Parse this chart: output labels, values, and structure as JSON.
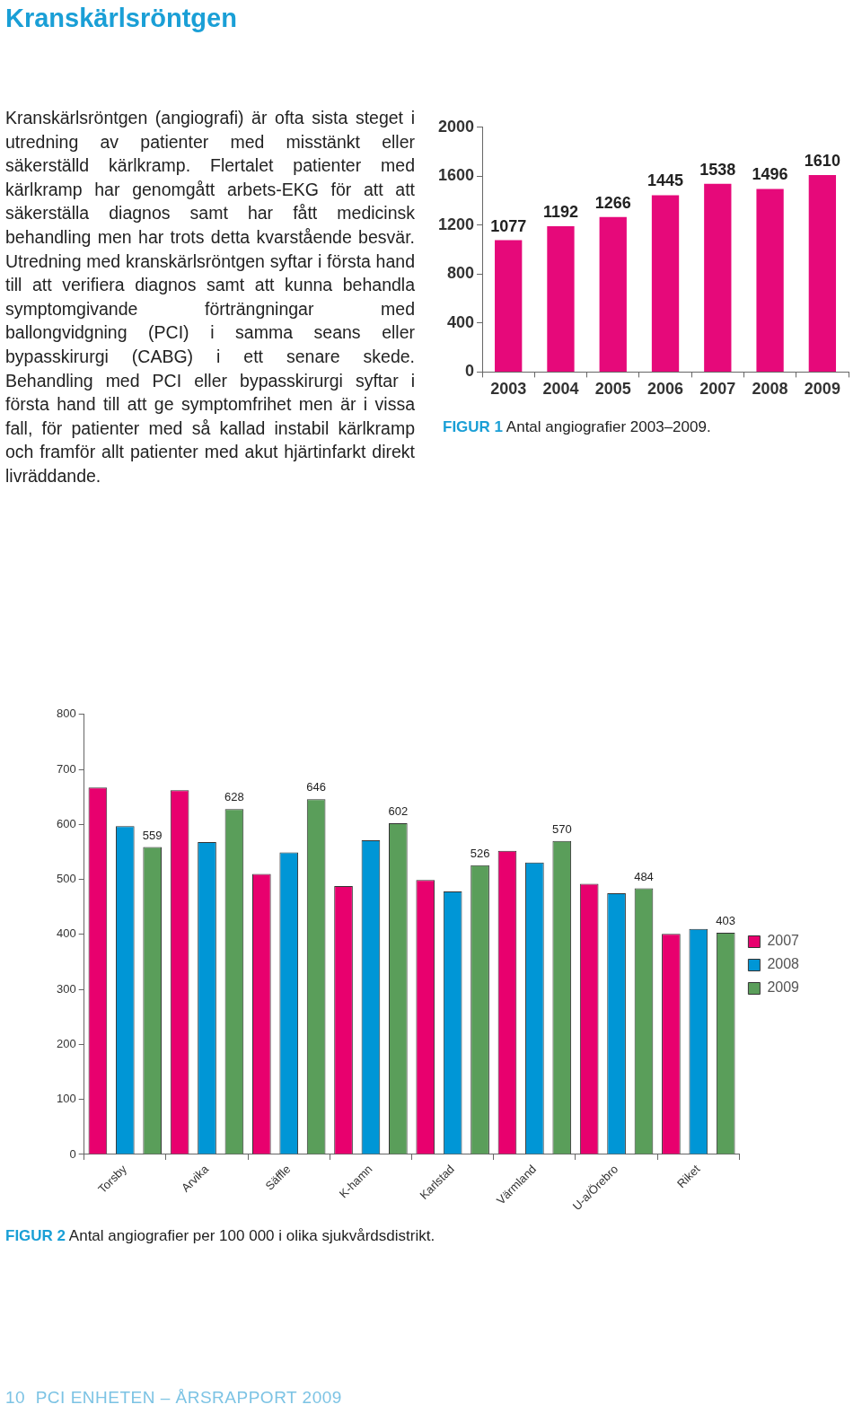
{
  "chart_data": [
    {
      "type": "bar",
      "title": "FIGUR 1",
      "subtitle": "Antal angiografier 2003–2009.",
      "annotations": [
        "Kranskärlsröntgen",
        "Kranskärlsröntgen (angiografi) är ofta sista steget i utredning av patienter med misstänkt eller säkerställd kärlkramp. Flertalet patienter med kärlkramp har genomgått arbets-EKG för att att säkerställa diagnos samt har fått medicinsk behandling men har trots detta kvarstående besvär. Utredning med kranskärlsröntgen syftar i första hand till att verifiera diagnos samt att kunna behandla symptomgivande förträngningar med ballongvidgning (PCI) i samma seans eller bypasskirurgi (CABG) i ett senare skede. Behandling med PCI eller bypasskirurgi syftar i första hand till att ge symptomfrihet men är i vissa fall, för patienter med så kallad instabil kärlkramp och framför allt patienter med akut hjärtinfarkt direkt livräddande."
      ],
      "categories": [
        "2003",
        "2004",
        "2005",
        "2006",
        "2007",
        "2008",
        "2009"
      ],
      "values": [
        1077,
        1192,
        1266,
        1445,
        1538,
        1496,
        1610
      ],
      "color": "#e6097a",
      "ylim": [
        0,
        2000
      ],
      "yticks": [
        0,
        400,
        800,
        1200,
        1600,
        2000
      ],
      "grid": false,
      "legend": false,
      "data_labels": true
    },
    {
      "type": "bar",
      "title": "FIGUR 2",
      "subtitle": "Antal angiografier per 100 000 i olika sjukvårdsdistrikt.",
      "annotations": [
        "10  PCI ENHETEN – ÅRSRAPPORT 2009"
      ],
      "categories": [
        "Torsby",
        "Arvika",
        "Säffle",
        "K-hamn",
        "Karlstad",
        "Värmland",
        "U-a/Örebro",
        "Riket"
      ],
      "series": [
        {
          "name": "2007",
          "color": "#e8006e",
          "values": [
            667,
            662,
            510,
            488,
            499,
            552,
            492,
            401
          ]
        },
        {
          "name": "2008",
          "color": "#0096d6",
          "values": [
            597,
            568,
            549,
            571,
            478,
            531,
            475,
            410
          ]
        },
        {
          "name": "2009",
          "color": "#5a9e5a",
          "values": [
            559,
            628,
            646,
            602,
            526,
            570,
            484,
            403
          ],
          "value_labels": [
            "559",
            "628",
            "646",
            "602",
            "526",
            "570",
            "484",
            "403"
          ]
        }
      ],
      "ylim": [
        0,
        800
      ],
      "yticks": [
        0,
        100,
        200,
        300,
        400,
        500,
        600,
        700,
        800
      ],
      "grid": false,
      "legend": "right"
    }
  ]
}
